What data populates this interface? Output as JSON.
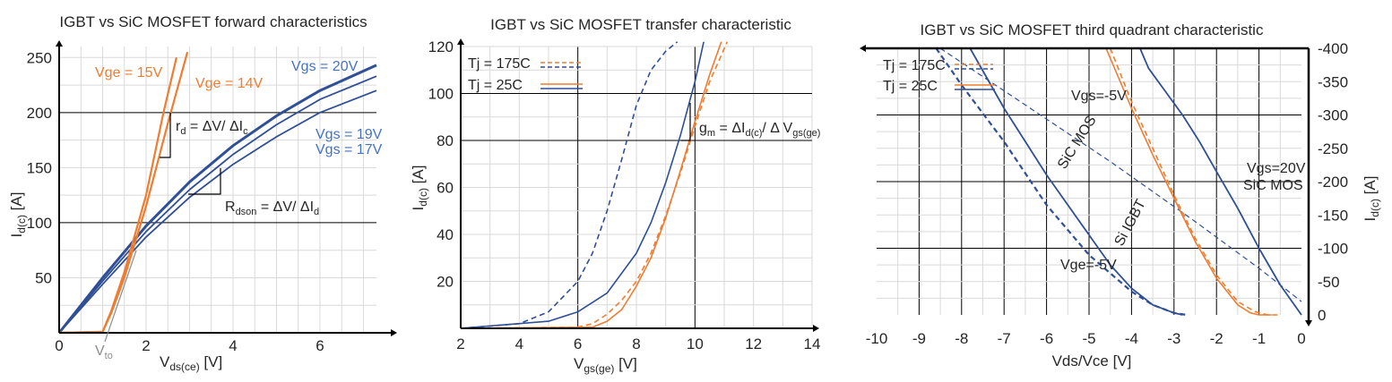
{
  "colors": {
    "orange": "#ED7D31",
    "blue": "#2F4F96",
    "blue_label": "#4472C4",
    "grid": "#D9D9D9",
    "grid_major": "#000000"
  },
  "chart_data": [
    {
      "type": "line",
      "title": "IGBT vs SiC MOSFET forward characteristics",
      "xlabel_main": "V",
      "xlabel_sub": "ds(ce)",
      "xlabel_unit": " [V]",
      "ylabel_main": "I",
      "ylabel_sub": "d(c)",
      "ylabel_unit": " [A]",
      "xlim": [
        0,
        7.3
      ],
      "ylim": [
        0,
        260
      ],
      "xticks": [
        "0",
        "2",
        "4",
        "6"
      ],
      "xtick_values": [
        0,
        2,
        4,
        6
      ],
      "yticks": [
        "50",
        "100",
        "150",
        "200",
        "250"
      ],
      "ytick_values": [
        50,
        100,
        150,
        200,
        250
      ],
      "series": [
        {
          "name": "Vgs = 20V",
          "color": "blue",
          "width": 3,
          "x": [
            0,
            1,
            2,
            3,
            4,
            5,
            6,
            7.3
          ],
          "y": [
            0,
            50,
            97,
            137,
            170,
            197,
            220,
            243
          ]
        },
        {
          "name": "Vgs = 19V",
          "color": "blue",
          "width": 1.8,
          "x": [
            0,
            1,
            2,
            3,
            4,
            5,
            6,
            7.3
          ],
          "y": [
            0,
            47,
            92,
            130,
            162,
            189,
            212,
            233
          ]
        },
        {
          "name": "Vgs = 17V",
          "color": "blue",
          "width": 1.8,
          "x": [
            0,
            1,
            2,
            3,
            4,
            5,
            6,
            7.3
          ],
          "y": [
            0,
            44,
            87,
            123,
            153,
            178,
            200,
            220
          ]
        },
        {
          "name": "Vge = 15V",
          "color": "orange",
          "width": 2.2,
          "x": [
            0,
            1,
            1.2,
            1.5,
            2.0,
            2.4,
            2.7
          ],
          "y": [
            0,
            1,
            20,
            55,
            125,
            200,
            250
          ]
        },
        {
          "name": "Vge = 14V",
          "color": "orange",
          "width": 2.2,
          "x": [
            0,
            1,
            1.2,
            1.5,
            2.0,
            2.5,
            2.95
          ],
          "y": [
            0,
            1,
            18,
            50,
            115,
            190,
            255
          ]
        }
      ],
      "annotations": {
        "vge15": "Vge = 15V",
        "vge14": "Vge = 14V",
        "vgs20": "Vgs = 20V",
        "vgs19": "Vgs = 19V",
        "vgs17": "Vgs = 17V",
        "rd_main": "r",
        "rd_sub": "d",
        "rd_mid": " = ΔV/ ΔI",
        "rd_sub2": "c",
        "rdson_main": "R",
        "rdson_sub": "dson",
        "rdson_rest": " = ΔV/ ΔI",
        "rdson_sub2": "d",
        "vto_main": "V",
        "vto_sub": "to"
      }
    },
    {
      "type": "line",
      "title": "IGBT vs SiC MOSFET transfer characteristic",
      "xlabel_main": "V",
      "xlabel_sub": "gs(ge)",
      "xlabel_unit": " [V]",
      "ylabel_main": "I",
      "ylabel_sub": "d(c)",
      "ylabel_unit": " [A]",
      "xlim": [
        2,
        14
      ],
      "ylim": [
        0,
        120
      ],
      "xticks": [
        "2",
        "4",
        "6",
        "8",
        "10",
        "12",
        "14"
      ],
      "xtick_values": [
        2,
        4,
        6,
        8,
        10,
        12,
        14
      ],
      "yticks": [
        "20",
        "40",
        "60",
        "80",
        "100",
        "120"
      ],
      "ytick_values": [
        20,
        40,
        60,
        80,
        100,
        120
      ],
      "series": [
        {
          "name": "SiC MOS 175C",
          "color": "blue",
          "dash": true,
          "x": [
            2,
            4,
            5,
            6,
            6.5,
            7,
            7.5,
            8,
            8.5,
            9,
            9.4
          ],
          "y": [
            0,
            2,
            7,
            20,
            32,
            50,
            72,
            95,
            110,
            118,
            122
          ]
        },
        {
          "name": "SiC MOS 25C",
          "color": "blue",
          "dash": false,
          "x": [
            2,
            5,
            6,
            7,
            8,
            8.5,
            9,
            9.5,
            10,
            10.3
          ],
          "y": [
            0,
            3,
            7,
            15,
            32,
            45,
            62,
            82,
            105,
            122
          ]
        },
        {
          "name": "IGBT 175C",
          "color": "orange",
          "dash": true,
          "x": [
            2,
            6,
            6.5,
            7,
            7.5,
            8,
            8.5,
            9,
            9.5,
            10,
            10.5,
            11.1
          ],
          "y": [
            0,
            0.5,
            2,
            6,
            12,
            20,
            32,
            48,
            66,
            86,
            105,
            122
          ]
        },
        {
          "name": "IGBT 25C",
          "color": "orange",
          "dash": false,
          "x": [
            2,
            6.5,
            7,
            7.5,
            8,
            8.5,
            9,
            9.5,
            10,
            10.5,
            10.9
          ],
          "y": [
            0,
            0.5,
            3,
            8,
            18,
            30,
            47,
            67,
            88,
            108,
            122
          ]
        }
      ],
      "legend": {
        "row1": "Tj = 175C",
        "row2": "Tj = 25C"
      },
      "annotations": {
        "gm_main": "g",
        "gm_sub": "m",
        "gm_mid": " = ΔI",
        "gm_sub2": "d(c)",
        "gm_mid2": "/ Δ V",
        "gm_sub3": "gs(ge)"
      }
    },
    {
      "type": "line",
      "title": "IGBT vs SiC MOSFET third quadrant characteristic",
      "xlabel": "Vds/Vce [V]",
      "ylabel_main": "I",
      "ylabel_sub": "d(c)",
      "ylabel_unit": " [A]",
      "xlim": [
        -10,
        0
      ],
      "ylim": [
        -400,
        0
      ],
      "xticks": [
        "-10",
        "-9",
        "-8",
        "-7",
        "-6",
        "-5",
        "-4",
        "-3",
        "-2",
        "-1",
        "0"
      ],
      "xtick_values": [
        -10,
        -9,
        -8,
        -7,
        -6,
        -5,
        -4,
        -3,
        -2,
        -1,
        0
      ],
      "yticks": [
        "0",
        "-50",
        "-100",
        "-150",
        "-200",
        "-250",
        "-300",
        "-350",
        "-400"
      ],
      "ytick_values": [
        0,
        -50,
        -100,
        -150,
        -200,
        -250,
        -300,
        -350,
        -400
      ],
      "series": [
        {
          "name": "SiC MOS Vgs=-5V 25C",
          "color": "blue",
          "dash": false,
          "width": 1.8,
          "x": [
            -7.8,
            -7,
            -6,
            -5,
            -4.5,
            -4,
            -3.5,
            -3,
            -2.8
          ],
          "y": [
            -400,
            -310,
            -210,
            -120,
            -75,
            -40,
            -15,
            -3,
            0
          ]
        },
        {
          "name": "SiC MOS Vgs=-5V 175C",
          "color": "blue",
          "dash": true,
          "width": 2.2,
          "x": [
            -8.6,
            -8,
            -7,
            -6,
            -5,
            -4,
            -3.5,
            -3,
            -2.7
          ],
          "y": [
            -400,
            -345,
            -260,
            -165,
            -90,
            -35,
            -15,
            -3,
            0
          ]
        },
        {
          "name": "SiC MOS Vgs=20V 25C",
          "color": "blue",
          "dash": false,
          "width": 1.8,
          "x": [
            -3.8,
            -3.6,
            -3.2,
            -2.8,
            -2.4,
            -2,
            -1.5,
            -1,
            -0.5,
            0
          ],
          "y": [
            -400,
            -370,
            -335,
            -300,
            -260,
            -215,
            -160,
            -100,
            -45,
            0
          ]
        },
        {
          "name": "SiC MOS Vgs=20V 175C",
          "color": "blue",
          "dash": true,
          "width": 1.2,
          "x": [
            -8.5,
            -6.5,
            -4.5,
            -2.5,
            -1,
            0
          ],
          "y": [
            -400,
            -315,
            -230,
            -140,
            -70,
            -20
          ]
        },
        {
          "name": "Si IGBT 25C",
          "color": "orange",
          "dash": false,
          "x": [
            -4.6,
            -4,
            -3.5,
            -3,
            -2.5,
            -2,
            -1.5,
            -1.2,
            -1,
            -0.7
          ],
          "y": [
            -400,
            -310,
            -240,
            -175,
            -110,
            -55,
            -15,
            -3,
            0,
            0
          ]
        },
        {
          "name": "Si IGBT 175C",
          "color": "orange",
          "dash": true,
          "x": [
            -4.5,
            -4,
            -3.5,
            -3,
            -2.5,
            -2,
            -1.5,
            -1.1,
            -0.8,
            -0.5
          ],
          "y": [
            -400,
            -320,
            -250,
            -180,
            -115,
            -60,
            -20,
            -5,
            0,
            0
          ]
        }
      ],
      "legend": {
        "row1": "Tj = 175C",
        "row2": "Tj = 25C"
      },
      "annotations": {
        "vgs_m5": "Vgs=-5V",
        "vge_m5": "Vge=-5V",
        "sic_mos_rot": "SiC MOS",
        "si_igbt_rot": "Si IGBT",
        "vgs20": "Vgs=20V",
        "sic_mos": "SiC MOS"
      }
    }
  ]
}
